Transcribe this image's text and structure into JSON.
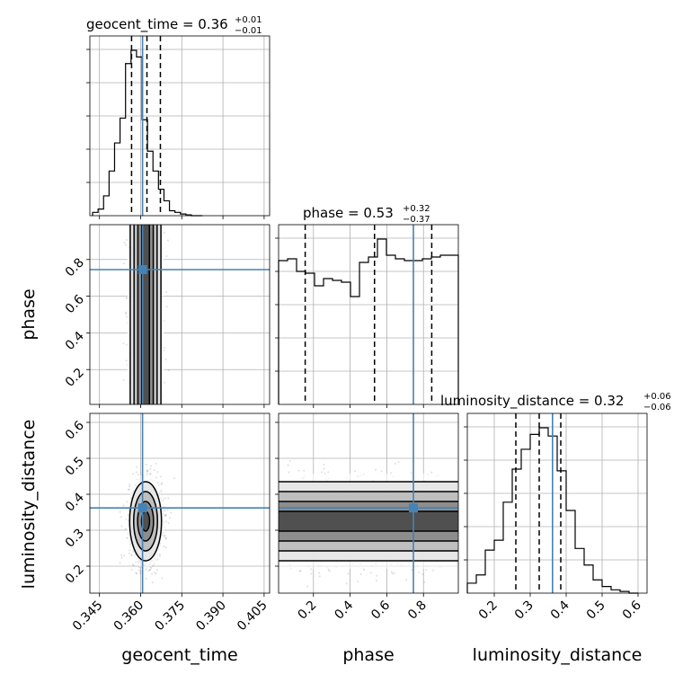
{
  "chart_data": {
    "type": "corner",
    "truth_color": "#4682b4",
    "grid": true,
    "parameters": [
      {
        "name": "geocent_time",
        "title_base": "geocent_time = 0.36",
        "title_sup": "+0.01",
        "title_sub": "−0.01",
        "range": [
          0.3415,
          0.407
        ],
        "ticks": [
          "0.345",
          "0.360",
          "0.375",
          "0.390",
          "0.405"
        ],
        "tick_values": [
          0.345,
          0.36,
          0.375,
          0.39,
          0.405
        ],
        "truth": 0.3607,
        "quantiles": [
          0.3567,
          0.3623,
          0.3672
        ]
      },
      {
        "name": "phase",
        "title_base": "phase = 0.53",
        "title_sup": "+0.32",
        "title_sub": "−0.37",
        "range": [
          0.01,
          0.99
        ],
        "ticks": [
          "0.2",
          "0.4",
          "0.6",
          "0.8"
        ],
        "tick_values": [
          0.2,
          0.4,
          0.6,
          0.8
        ],
        "truth": 0.745,
        "quantiles": [
          0.155,
          0.533,
          0.845
        ]
      },
      {
        "name": "luminosity_distance",
        "title_base": "luminosity_distance = 0.32",
        "title_sup": "+0.06",
        "title_sub": "−0.06",
        "range": [
          0.125,
          0.625
        ],
        "ticks": [
          "0.2",
          "0.3",
          "0.4",
          "0.5",
          "0.6"
        ],
        "tick_values": [
          0.2,
          0.3,
          0.4,
          0.5,
          0.6
        ],
        "truth": 0.362,
        "quantiles": [
          0.26,
          0.325,
          0.385
        ]
      }
    ],
    "histograms": [
      {
        "param": "geocent_time",
        "bin_edges": [
          0.3425,
          0.3445,
          0.3465,
          0.3485,
          0.3505,
          0.3525,
          0.3545,
          0.3565,
          0.3585,
          0.3605,
          0.3625,
          0.3645,
          0.3665,
          0.3685,
          0.3705,
          0.3725,
          0.3745,
          0.3765,
          0.3785,
          0.3805,
          0.3825
        ],
        "counts": [
          0.02,
          0.04,
          0.12,
          0.27,
          0.44,
          0.59,
          0.92,
          1.0,
          0.96,
          0.58,
          0.39,
          0.27,
          0.16,
          0.09,
          0.03,
          0.02,
          0.01,
          0.005,
          0.0,
          0.0
        ]
      },
      {
        "param": "phase",
        "bin_edges": [
          0.01,
          0.059,
          0.108,
          0.157,
          0.206,
          0.255,
          0.304,
          0.353,
          0.402,
          0.451,
          0.5,
          0.549,
          0.598,
          0.647,
          0.696,
          0.745,
          0.794,
          0.843,
          0.892,
          0.941,
          0.99
        ],
        "counts": [
          0.8,
          0.81,
          0.74,
          0.73,
          0.66,
          0.7,
          0.69,
          0.68,
          0.6,
          0.79,
          0.82,
          0.92,
          0.83,
          0.81,
          0.8,
          0.8,
          0.81,
          0.82,
          0.83,
          0.83
        ]
      },
      {
        "param": "luminosity_distance",
        "bin_edges": [
          0.125,
          0.15,
          0.175,
          0.2,
          0.225,
          0.25,
          0.275,
          0.3,
          0.325,
          0.35,
          0.375,
          0.4,
          0.425,
          0.45,
          0.475,
          0.5,
          0.525,
          0.55,
          0.575,
          0.6
        ],
        "counts": [
          0.06,
          0.11,
          0.26,
          0.32,
          0.55,
          0.75,
          0.87,
          0.96,
          1.0,
          0.95,
          0.74,
          0.5,
          0.27,
          0.17,
          0.08,
          0.04,
          0.02,
          0.01,
          0.0
        ]
      }
    ],
    "joint": [
      {
        "x": "geocent_time",
        "y": "phase",
        "x_center": 0.3618,
        "x_sigma": 0.0028,
        "y_distribution": "uniform",
        "truth_point": [
          0.3607,
          0.745
        ]
      },
      {
        "x": "geocent_time",
        "y": "luminosity_distance",
        "x_center": 0.3618,
        "x_sigma": 0.0029,
        "y_center": 0.325,
        "y_sigma": 0.055,
        "truth_point": [
          0.3607,
          0.362
        ]
      },
      {
        "x": "phase",
        "y": "luminosity_distance",
        "x_distribution": "uniform",
        "y_center": 0.325,
        "y_sigma": 0.055,
        "truth_point": [
          0.745,
          0.362
        ]
      }
    ]
  }
}
